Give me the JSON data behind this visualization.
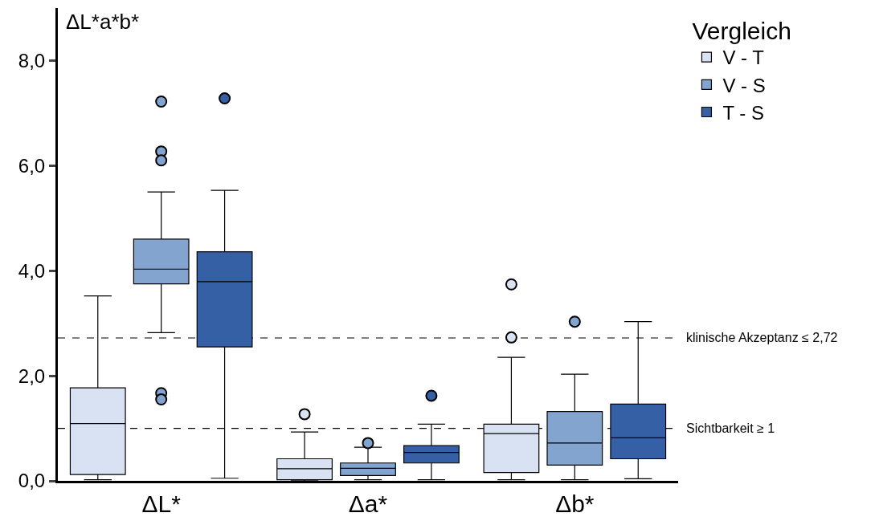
{
  "chart_data": {
    "type": "box",
    "ylabel": "ΔL*a*b*",
    "categories": [
      "ΔL*",
      "Δa*",
      "Δb*"
    ],
    "legend_title": "Vergleich",
    "legend": "top right",
    "grid": false,
    "ylim": [
      0,
      9.0
    ],
    "yticks": [
      {
        "value": 0,
        "label": "0,0"
      },
      {
        "value": 2,
        "label": "2,0"
      },
      {
        "value": 4,
        "label": "4,0"
      },
      {
        "value": 6,
        "label": "6,0"
      },
      {
        "value": 8,
        "label": "8,0"
      }
    ],
    "series": [
      {
        "name": "V - T",
        "color": "#d9e2f3",
        "boxes": [
          {
            "low": 0.02,
            "q1": 0.12,
            "median": 1.09,
            "q3": 1.77,
            "high": 3.52
          },
          {
            "low": 0.0,
            "q1": 0.02,
            "median": 0.23,
            "q3": 0.42,
            "high": 0.93,
            "outliers": [
              1.27
            ]
          },
          {
            "low": 0.02,
            "q1": 0.16,
            "median": 0.9,
            "q3": 1.08,
            "high": 2.35,
            "outliers": [
              3.74,
              2.73
            ]
          }
        ]
      },
      {
        "name": "V - S",
        "color": "#84a4d0",
        "boxes": [
          {
            "low": 2.82,
            "q1": 3.75,
            "median": 4.03,
            "q3": 4.6,
            "high": 5.5,
            "outliers": [
              7.22,
              6.27,
              6.1,
              1.67,
              1.55
            ]
          },
          {
            "low": 0.02,
            "q1": 0.1,
            "median": 0.24,
            "q3": 0.34,
            "high": 0.64,
            "outliers": [
              0.72
            ]
          },
          {
            "low": 0.02,
            "q1": 0.3,
            "median": 0.72,
            "q3": 1.32,
            "high": 2.03,
            "outliers": [
              3.03
            ]
          }
        ]
      },
      {
        "name": "T - S",
        "color": "#3560a6",
        "boxes": [
          {
            "low": 0.05,
            "q1": 2.55,
            "median": 3.79,
            "q3": 4.36,
            "high": 5.53,
            "outliers": [
              7.28
            ]
          },
          {
            "low": 0.02,
            "q1": 0.34,
            "median": 0.54,
            "q3": 0.67,
            "high": 1.08,
            "outliers": [
              1.62
            ]
          },
          {
            "low": 0.04,
            "q1": 0.42,
            "median": 0.82,
            "q3": 1.46,
            "high": 3.03
          }
        ]
      }
    ],
    "ref_lines": [
      {
        "axis": "y",
        "value": 2.72,
        "label": "klinische Akzeptanz ≤ 2,72",
        "line_style": "dashed"
      },
      {
        "axis": "y",
        "value": 1,
        "label": "Sichtbarkeit ≥ 1",
        "line_style": "dashed"
      }
    ]
  }
}
